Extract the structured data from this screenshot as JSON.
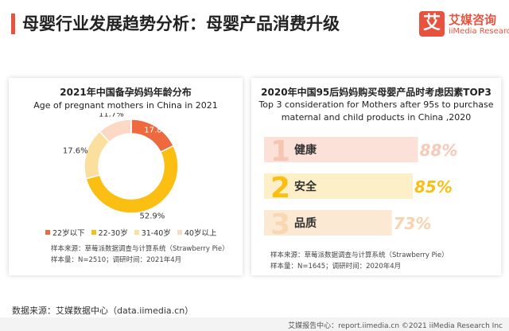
{
  "header": {
    "title": "母婴行业发展趋势分析：母婴产品消费升级",
    "logo_mark": "艾",
    "logo_cn": "艾媒咨询",
    "logo_en": "iiMedia Research"
  },
  "left_card": {
    "note_source": "样本来源：草莓派数据调查与计算系统（Strawberry Pie）",
    "note_sample": "样本量：N=2510；调研时间：2021年4月"
  },
  "right_card": {
    "note_source": "样本来源：草莓派数据调查与计算系统（Strawberry Pie）",
    "note_sample": "样本量：N=1645；调研时间：2020年4月"
  },
  "footer": {
    "source": "数据来源：艾媒数据中心（data.iimedia.cn）",
    "right": "艾媒报告中心：report.iimedia.cn ©2021 iiMedia Research Inc"
  },
  "chart_data": [
    {
      "type": "pie",
      "title": "2021年中国备孕妈妈年龄分布",
      "subtitle": "Age of pregnant mothers in China in 2021",
      "categories": [
        "22岁以下",
        "22-30岁",
        "31-40岁",
        "40岁以上"
      ],
      "values": [
        17.8,
        52.9,
        17.6,
        11.7
      ],
      "value_labels": [
        "17.8%",
        "52.9%",
        "17.6%",
        "11.7%"
      ],
      "colors": [
        "#ee6a3e",
        "#fbbf13",
        "#fbdf9f",
        "#fbd9c4"
      ],
      "donut": true,
      "legend": "bottom"
    },
    {
      "type": "bar",
      "orientation": "horizontal",
      "title": "2020年中国95后妈妈购买母婴产品时考虑因素TOP3",
      "subtitle_line1": "Top 3 consideration for Mothers after 95s to purchase",
      "subtitle_line2": "maternal and child products in China ,2020",
      "categories": [
        "健康",
        "安全",
        "品质"
      ],
      "ranks": [
        "1",
        "2",
        "3"
      ],
      "values": [
        88,
        85,
        73
      ],
      "value_labels": [
        "88%",
        "85%",
        "73%"
      ],
      "colors": [
        "#fbe1d8",
        "#fdf0c8",
        "#fbe9d3"
      ],
      "rank_colors": [
        "#f6c6b3",
        "#fbbf13",
        "#fad7b3"
      ],
      "value_colors": [
        "#f6c9b8",
        "#fbbf13",
        "#fad2ac"
      ]
    }
  ]
}
